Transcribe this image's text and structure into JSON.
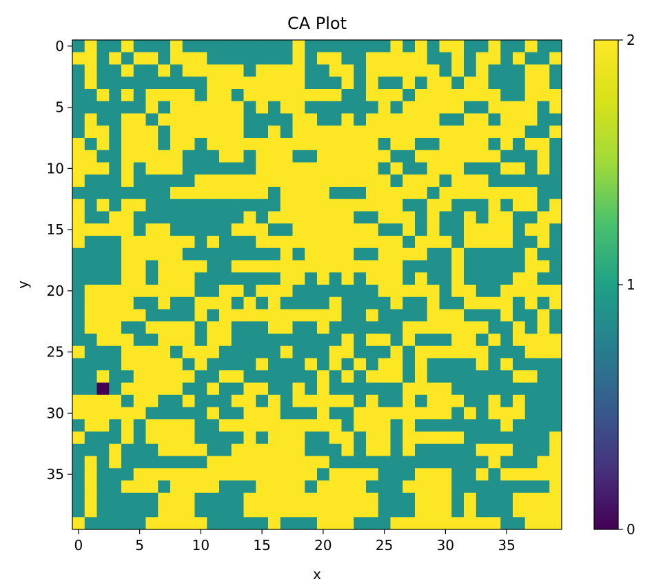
{
  "chart_data": {
    "type": "heatmap",
    "title": "CA Plot",
    "xlabel": "x",
    "ylabel": "y",
    "x_ticks": [
      0,
      5,
      10,
      15,
      20,
      25,
      30,
      35
    ],
    "y_ticks": [
      0,
      5,
      10,
      15,
      20,
      25,
      30,
      35
    ],
    "xlim": [
      -0.5,
      39.5
    ],
    "ylim": [
      39.5,
      -0.5
    ],
    "colormap": "viridis",
    "color_range": [
      0,
      2
    ],
    "colorbar_ticks": [
      0,
      1,
      2
    ],
    "colors": {
      "0": "#440154",
      "1": "#21918c",
      "2": "#fde725"
    },
    "grid_size": [
      40,
      40
    ],
    "rows": [
      "1211211121111111112111111121212211211211",
      "2212122122211111112122112222211212212112",
      "1211211212222212222112212222221212111221",
      "1211111111122222222111212112122122111221",
      "1121212222122122222222112221222222211222",
      "1111112122222212122111111212222211222212",
      "1211221222222211112211212222221122122211",
      "1221222122222211212222222222222222222112",
      "2121222122122222222222222122112222121221",
      "2211222221112212221122222211222222211121",
      "2221212221111112222222222121122211122121",
      "2111211111222222222222222212221222111111",
      "1111111122222222122221112222212222222211",
      "2121221111111111122222222221122111212212",
      "2112211111111121222222211222121121221122",
      "2222212211111222112222222112121122221221",
      "2111222222121112222222222221222122221121",
      "1111222221111111121222211222211211111211",
      "1111221222211222222222222221111211111221",
      "1111221222111111122121212221211211112211",
      "1222222222112212221111111222221221122222",
      "1222211211222121211112111121121122221212",
      "1222221111212222222222112111122211121121",
      "1222112222122111221121111112222222112121",
      "1122211222122111111111212212111221212222",
      "2111222212221111121112211121222222111222",
      "1111222221211112111212121221211112121111",
      "1121122222112211111121212221211111112211",
      "1101222221121122112121111112222111111111",
      "2222122112111221212222212112122211212111",
      "2222221111121122211121122222222121222111",
      "1221212222112222222222122212111111121111",
      "2111212222111121222112212212222211111112",
      "1112111222211222222111212212111112221112",
      "1212111111122222222221111111111111211122",
      "1211122222222222222212222111222112122222",
      "1211222122221112222122221112222111111112",
      "1211111222111122222222222111222121112222",
      "1211111222111122222222222111222121112222",
      "2111112222211111211122211122222222211222"
    ]
  }
}
